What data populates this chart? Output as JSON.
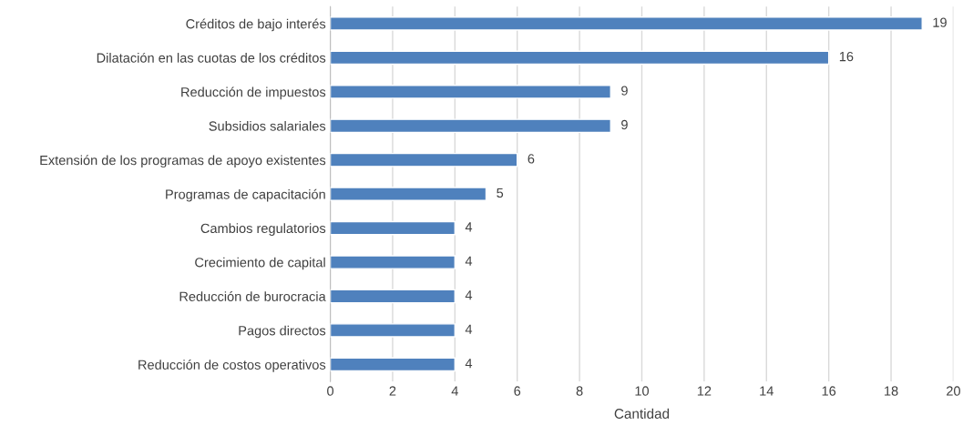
{
  "chart_data": {
    "type": "bar",
    "orientation": "horizontal",
    "xlabel": "Cantidad",
    "categories": [
      "Créditos de bajo interés",
      "Dilatación en las cuotas de los créditos",
      "Reducción de impuestos",
      "Subsidios salariales",
      "Extensión de los programas de apoyo existentes",
      "Programas de capacitación",
      "Cambios regulatorios",
      "Crecimiento de capital",
      "Reducción de burocracia",
      "Pagos directos",
      "Reducción de costos operativos"
    ],
    "values": [
      19,
      16,
      9,
      9,
      6,
      5,
      4,
      4,
      4,
      4,
      4
    ],
    "color": "#4f81bd",
    "xlim": [
      0,
      20
    ],
    "xticks": [
      0,
      2,
      4,
      6,
      8,
      10,
      12,
      14,
      16,
      18,
      20
    ],
    "grid": "x",
    "data_labels": true,
    "legend": false
  }
}
